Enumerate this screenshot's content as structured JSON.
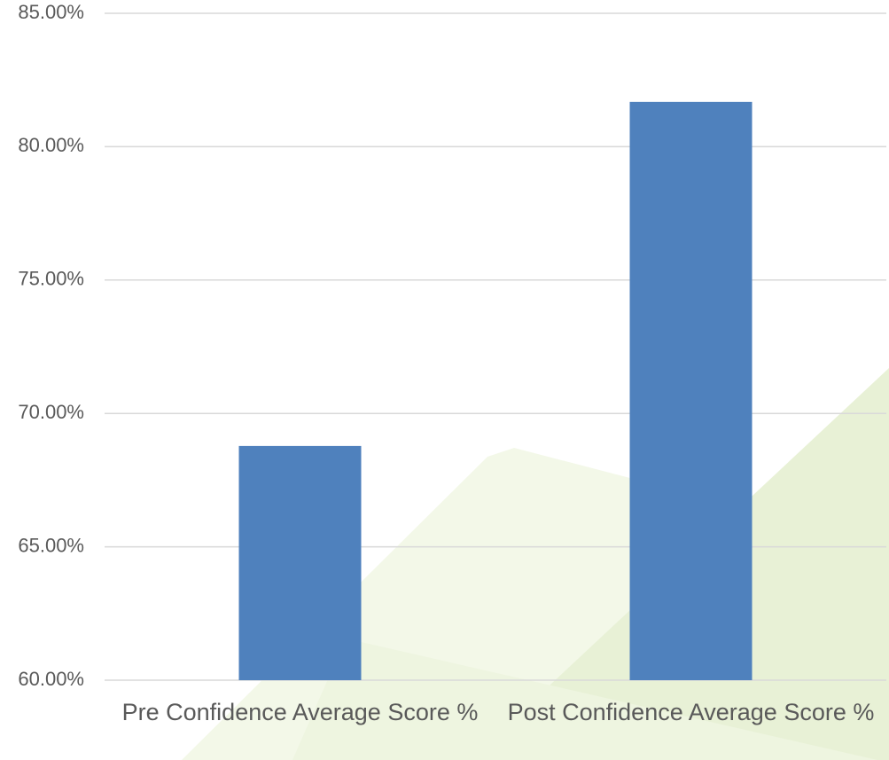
{
  "chart_data": {
    "type": "bar",
    "categories": [
      "Pre Confidence Average Score %",
      "Post Confidence Average Score %"
    ],
    "values": [
      68.78,
      81.68
    ],
    "color": "#4f81bd",
    "ylim": [
      60,
      85
    ],
    "yticks": [
      {
        "value": 60,
        "label": "60.00%"
      },
      {
        "value": 65,
        "label": "65.00%"
      },
      {
        "value": 70,
        "label": "70.00%"
      },
      {
        "value": 75,
        "label": "75.00%"
      },
      {
        "value": 80,
        "label": "80.00%"
      },
      {
        "value": 85,
        "label": "85.00%"
      }
    ],
    "grid": true
  }
}
